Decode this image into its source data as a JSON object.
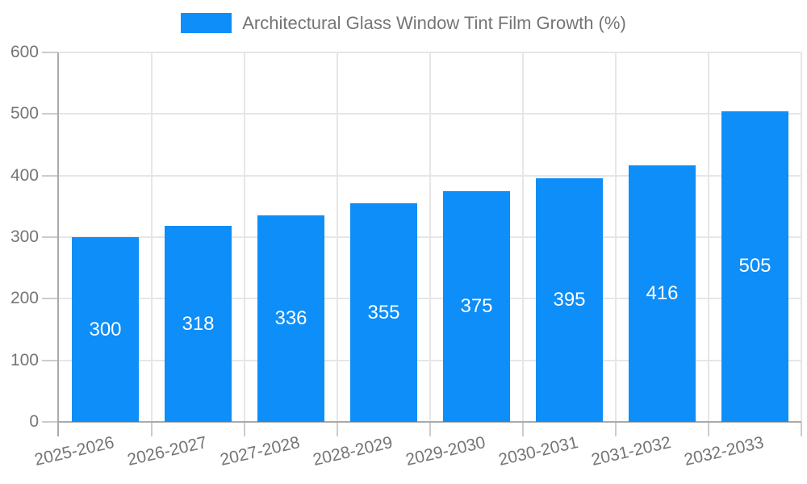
{
  "chart_data": {
    "type": "bar",
    "title": "Architectural Glass Window Tint Film Growth (%)",
    "categories": [
      "2025-2026",
      "2026-2027",
      "2027-2028",
      "2028-2029",
      "2029-2030",
      "2030-2031",
      "2031-2032",
      "2032-2033"
    ],
    "values": [
      300,
      318,
      336,
      355,
      375,
      395,
      416,
      505
    ],
    "xlabel": "",
    "ylabel": "",
    "ylim": [
      0,
      600
    ],
    "ytick_step": 100,
    "yticks": [
      0,
      100,
      200,
      300,
      400,
      500,
      600
    ],
    "grid": true,
    "legend_position": "top-center",
    "bar_labels_inside": true,
    "colors": {
      "bar": "#0d8ef8",
      "bar_label_text": "#ffffff",
      "axis_text": "#757575",
      "legend_text": "#757575",
      "gridline": "#e6e6e6",
      "axis_line": "#aaaaaa",
      "tick": "#cccccc"
    }
  }
}
